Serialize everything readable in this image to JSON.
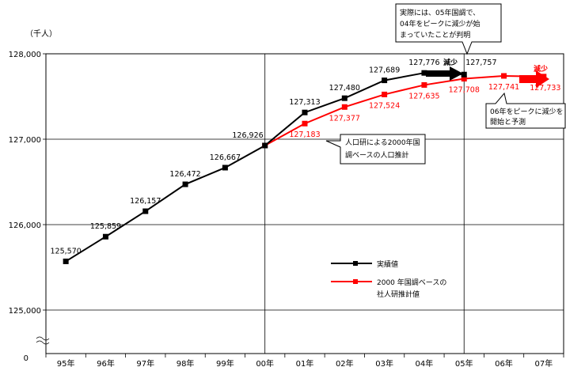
{
  "chart_data": {
    "type": "line",
    "unit_label": "（千人）",
    "categories": [
      "95年",
      "96年",
      "97年",
      "98年",
      "99年",
      "00年",
      "01年",
      "02年",
      "03年",
      "04年",
      "05年",
      "06年",
      "07年"
    ],
    "y_tick_labels": [
      "125,000",
      "126,000",
      "127,000",
      "128,000"
    ],
    "y_zero_label": "0",
    "ylim": [
      124500,
      128000
    ],
    "series": [
      {
        "name": "実績値",
        "color": "#000000",
        "values": [
          125570,
          125859,
          126157,
          126472,
          126667,
          126926,
          127313,
          127480,
          127689,
          127776,
          127757,
          null,
          null
        ],
        "labels": [
          "125,570",
          "125,859",
          "126,157",
          "126,472",
          "126,667",
          "126,926",
          "127,313",
          "127,480",
          "127,689",
          "127,776",
          "127,757",
          null,
          null
        ]
      },
      {
        "name": "2000 年国調ベースの社人研推計値",
        "legend_line1": "2000 年国調ベースの",
        "legend_line2": "社人研推計値",
        "color": "#ff0000",
        "values": [
          null,
          null,
          null,
          null,
          null,
          126926,
          127183,
          127377,
          127524,
          127635,
          127708,
          127741,
          127733
        ],
        "labels": [
          null,
          null,
          null,
          null,
          null,
          null,
          "127,183",
          "127,377",
          "127,524",
          "127,635",
          "127,708",
          "127,741",
          "127,733"
        ]
      }
    ],
    "annotations": {
      "projection_box": [
        "人口研による2000年国",
        "調ベースの人口推計"
      ],
      "actual_box": [
        "実際には、05年国調で、",
        "04年をピークに減少が始",
        "まっていたことが判明"
      ],
      "forecast_box": [
        "06年をピークに減少を",
        "開始と予測"
      ],
      "decrease_black": "減少",
      "decrease_red": "減少"
    }
  }
}
